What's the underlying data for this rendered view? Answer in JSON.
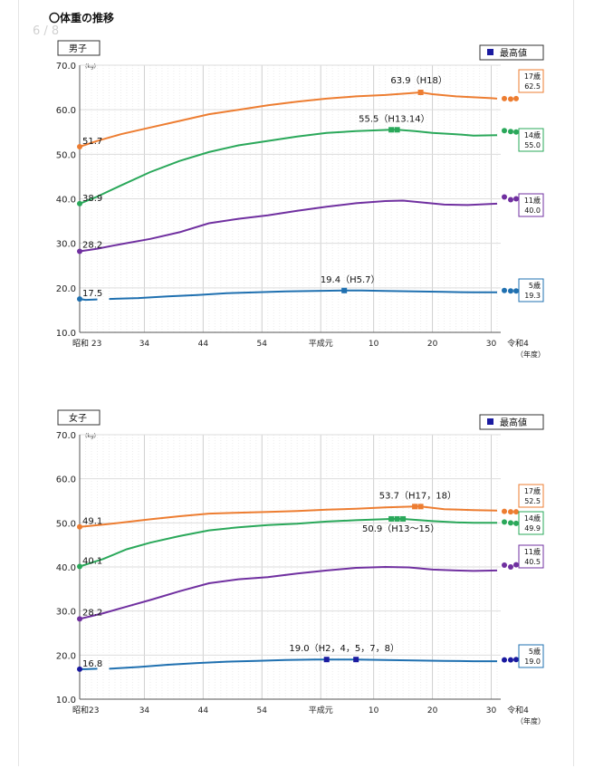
{
  "page_indicator": "6 / 8",
  "heading": "〇体重の推移",
  "chart_data": [
    {
      "type": "line",
      "title": "男子",
      "unit_label": "(kg)",
      "legend_label": "最高値",
      "ylim": [
        10,
        70
      ],
      "yticks": [
        "10.0",
        "20.0",
        "30.0",
        "40.0",
        "50.0",
        "60.0",
        "70.0"
      ],
      "xlim": [
        1948,
        2022
      ],
      "xticks": [
        {
          "x": 1948,
          "label": "昭和 23"
        },
        {
          "x": 1959,
          "label": "34"
        },
        {
          "x": 1969,
          "label": "44"
        },
        {
          "x": 1979,
          "label": "54"
        },
        {
          "x": 1989,
          "label": "平成元"
        },
        {
          "x": 1998,
          "label": "10"
        },
        {
          "x": 2008,
          "label": "20"
        },
        {
          "x": 2018,
          "label": "30"
        },
        {
          "x": 2022,
          "label": "令和4"
        }
      ],
      "x_unit": "（年度）",
      "series": [
        {
          "name": "17歳",
          "color": "#ed7d31",
          "start_label": "51.7",
          "end_label": "62.5",
          "points": [
            [
              1948,
              51.7
            ],
            [
              1951,
              53
            ],
            [
              1955,
              54.5
            ],
            [
              1960,
              56
            ],
            [
              1965,
              57.5
            ],
            [
              1970,
              59
            ],
            [
              1975,
              60
            ],
            [
              1980,
              61
            ],
            [
              1985,
              61.8
            ],
            [
              1990,
              62.5
            ],
            [
              1995,
              63
            ],
            [
              2000,
              63.3
            ],
            [
              2004,
              63.7
            ],
            [
              2006,
              63.9
            ],
            [
              2008,
              63.5
            ],
            [
              2012,
              63
            ],
            [
              2015,
              62.8
            ],
            [
              2018,
              62.6
            ],
            [
              2019,
              62.5
            ]
          ],
          "peaks": [
            2006
          ],
          "peak_label": "63.9（H18）",
          "recent": [
            [
              2020,
              62.5
            ],
            [
              2021,
              62.4
            ],
            [
              2022,
              62.5
            ]
          ]
        },
        {
          "name": "14歳",
          "color": "#2aa85a",
          "start_label": "38.9",
          "end_label": "55.0",
          "points": [
            [
              1948,
              38.9
            ],
            [
              1951,
              40.5
            ],
            [
              1955,
              43
            ],
            [
              1960,
              46
            ],
            [
              1965,
              48.5
            ],
            [
              1970,
              50.5
            ],
            [
              1975,
              52
            ],
            [
              1980,
              53
            ],
            [
              1985,
              54
            ],
            [
              1990,
              54.8
            ],
            [
              1995,
              55.2
            ],
            [
              2001,
              55.5
            ],
            [
              2002,
              55.5
            ],
            [
              2005,
              55.2
            ],
            [
              2008,
              54.8
            ],
            [
              2012,
              54.5
            ],
            [
              2015,
              54.2
            ],
            [
              2019,
              54.3
            ]
          ],
          "peaks": [
            2001,
            2002
          ],
          "peak_label": "55.5（H13.14）",
          "recent": [
            [
              2020,
              55.3
            ],
            [
              2021,
              55.1
            ],
            [
              2022,
              55.0
            ]
          ]
        },
        {
          "name": "11歳",
          "color": "#7030a0",
          "start_label": "28.2",
          "end_label": "40.0",
          "points": [
            [
              1948,
              28.2
            ],
            [
              1951,
              28.8
            ],
            [
              1955,
              29.8
            ],
            [
              1960,
              31
            ],
            [
              1965,
              32.5
            ],
            [
              1970,
              34.5
            ],
            [
              1975,
              35.5
            ],
            [
              1980,
              36.3
            ],
            [
              1985,
              37.3
            ],
            [
              1990,
              38.2
            ],
            [
              1995,
              39
            ],
            [
              2000,
              39.5
            ],
            [
              2003,
              39.6
            ],
            [
              2006,
              39.2
            ],
            [
              2010,
              38.7
            ],
            [
              2014,
              38.6
            ],
            [
              2019,
              38.9
            ]
          ],
          "recent": [
            [
              2020,
              40.4
            ],
            [
              2021,
              39.8
            ],
            [
              2022,
              40.0
            ]
          ]
        },
        {
          "name": "5歳",
          "color": "#1f70b0",
          "start_label": "17.5",
          "end_label": "19.3",
          "gap_point": [
            1948,
            17.5
          ],
          "points_a": [
            [
              1948,
              17.5
            ],
            [
              1949,
              17.3
            ],
            [
              1951,
              17.4
            ]
          ],
          "points": [
            [
              1953,
              17.5
            ],
            [
              1958,
              17.7
            ],
            [
              1963,
              18.1
            ],
            [
              1968,
              18.4
            ],
            [
              1973,
              18.8
            ],
            [
              1978,
              19.0
            ],
            [
              1983,
              19.2
            ],
            [
              1988,
              19.3
            ],
            [
              1993,
              19.4
            ],
            [
              1996,
              19.4
            ],
            [
              2000,
              19.3
            ],
            [
              2005,
              19.2
            ],
            [
              2010,
              19.1
            ],
            [
              2015,
              19.0
            ],
            [
              2019,
              19.0
            ]
          ],
          "peaks": [
            1993,
            1995
          ],
          "peak_label": "19.4（H5.7）",
          "recent": [
            [
              2020,
              19.4
            ],
            [
              2021,
              19.3
            ],
            [
              2022,
              19.3
            ]
          ]
        }
      ]
    },
    {
      "type": "line",
      "title": "女子",
      "unit_label": "(kg)",
      "legend_label": "最高値",
      "ylim": [
        10,
        70
      ],
      "yticks": [
        "10.0",
        "20.0",
        "30.0",
        "40.0",
        "50.0",
        "60.0",
        "70.0"
      ],
      "xlim": [
        1948,
        2022
      ],
      "xticks": [
        {
          "x": 1948,
          "label": "昭和23"
        },
        {
          "x": 1959,
          "label": "34"
        },
        {
          "x": 1969,
          "label": "44"
        },
        {
          "x": 1979,
          "label": "54"
        },
        {
          "x": 1989,
          "label": "平成元"
        },
        {
          "x": 1998,
          "label": "10"
        },
        {
          "x": 2008,
          "label": "20"
        },
        {
          "x": 2018,
          "label": "30"
        },
        {
          "x": 2022,
          "label": "令和4"
        }
      ],
      "x_unit": "（年度）",
      "series": [
        {
          "name": "17歳",
          "color": "#ed7d31",
          "start_label": "49.1",
          "end_label": "52.5",
          "points": [
            [
              1948,
              49.1
            ],
            [
              1952,
              49.6
            ],
            [
              1956,
              50.2
            ],
            [
              1960,
              50.8
            ],
            [
              1965,
              51.5
            ],
            [
              1970,
              52.1
            ],
            [
              1975,
              52.3
            ],
            [
              1980,
              52.5
            ],
            [
              1985,
              52.7
            ],
            [
              1990,
              53
            ],
            [
              1995,
              53.2
            ],
            [
              2000,
              53.5
            ],
            [
              2005,
              53.7
            ],
            [
              2006,
              53.7
            ],
            [
              2010,
              53.1
            ],
            [
              2015,
              52.9
            ],
            [
              2019,
              52.8
            ]
          ],
          "peaks": [
            2005,
            2006
          ],
          "peak_label": "53.7（H17，18）",
          "recent": [
            [
              2020,
              52.6
            ],
            [
              2021,
              52.5
            ],
            [
              2022,
              52.5
            ]
          ]
        },
        {
          "name": "14歳",
          "color": "#2aa85a",
          "start_label": "40.1",
          "end_label": "49.9",
          "points": [
            [
              1948,
              40.1
            ],
            [
              1952,
              41.8
            ],
            [
              1956,
              44
            ],
            [
              1960,
              45.5
            ],
            [
              1965,
              47
            ],
            [
              1970,
              48.3
            ],
            [
              1975,
              49
            ],
            [
              1980,
              49.5
            ],
            [
              1985,
              49.8
            ],
            [
              1990,
              50.3
            ],
            [
              1995,
              50.6
            ],
            [
              2001,
              50.9
            ],
            [
              2002,
              50.9
            ],
            [
              2003,
              50.9
            ],
            [
              2008,
              50.4
            ],
            [
              2012,
              50.1
            ],
            [
              2015,
              50.0
            ],
            [
              2019,
              50.0
            ]
          ],
          "peaks": [
            2001,
            2002,
            2003
          ],
          "peak_label": "50.9（H13～15）",
          "recent": [
            [
              2020,
              50.2
            ],
            [
              2021,
              50.0
            ],
            [
              2022,
              49.9
            ]
          ]
        },
        {
          "name": "11歳",
          "color": "#7030a0",
          "start_label": "28.2",
          "end_label": "40.5",
          "points": [
            [
              1948,
              28.2
            ],
            [
              1952,
              29.5
            ],
            [
              1956,
              31
            ],
            [
              1960,
              32.5
            ],
            [
              1965,
              34.5
            ],
            [
              1970,
              36.3
            ],
            [
              1975,
              37.2
            ],
            [
              1980,
              37.7
            ],
            [
              1985,
              38.5
            ],
            [
              1990,
              39.2
            ],
            [
              1995,
              39.8
            ],
            [
              2000,
              40
            ],
            [
              2004,
              39.9
            ],
            [
              2008,
              39.4
            ],
            [
              2012,
              39.2
            ],
            [
              2015,
              39.1
            ],
            [
              2019,
              39.2
            ]
          ],
          "recent": [
            [
              2020,
              40.4
            ],
            [
              2021,
              40.0
            ],
            [
              2022,
              40.5
            ]
          ]
        },
        {
          "name": "5歳",
          "color": "#1f70b0",
          "start_label": "16.8",
          "end_label": "19.0",
          "gap_point": [
            1948,
            16.8
          ],
          "points_a": [
            [
              1948,
              16.8
            ],
            [
              1949,
              16.8
            ],
            [
              1951,
              16.9
            ]
          ],
          "points": [
            [
              1953,
              16.9
            ],
            [
              1958,
              17.3
            ],
            [
              1963,
              17.8
            ],
            [
              1968,
              18.2
            ],
            [
              1973,
              18.5
            ],
            [
              1978,
              18.7
            ],
            [
              1983,
              18.9
            ],
            [
              1988,
              19.0
            ],
            [
              1990,
              19.0
            ],
            [
              1995,
              19.0
            ],
            [
              2000,
              18.9
            ],
            [
              2005,
              18.8
            ],
            [
              2010,
              18.7
            ],
            [
              2015,
              18.6
            ],
            [
              2019,
              18.6
            ]
          ],
          "peaks": [
            1990,
            1992,
            1993,
            1995,
            1996
          ],
          "peak_label": "19.0（H2，4，5，7，8）",
          "recent": [
            [
              2020,
              18.9
            ],
            [
              2021,
              18.9
            ],
            [
              2022,
              19.0
            ]
          ],
          "marker_color": "#1a1aa0"
        }
      ]
    }
  ]
}
